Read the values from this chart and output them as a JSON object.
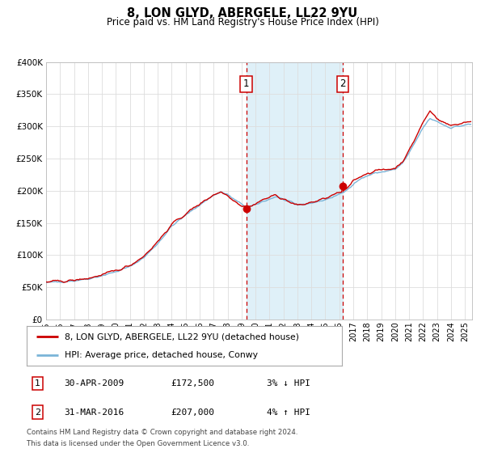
{
  "title": "8, LON GLYD, ABERGELE, LL22 9YU",
  "subtitle": "Price paid vs. HM Land Registry's House Price Index (HPI)",
  "ylim": [
    0,
    400000
  ],
  "yticks": [
    0,
    50000,
    100000,
    150000,
    200000,
    250000,
    300000,
    350000,
    400000
  ],
  "ytick_labels": [
    "£0",
    "£50K",
    "£100K",
    "£150K",
    "£200K",
    "£250K",
    "£300K",
    "£350K",
    "£400K"
  ],
  "xlim_start": 1995.0,
  "xlim_end": 2025.5,
  "hpi_color": "#7ab4d8",
  "price_color": "#cc0000",
  "sale1_date": 2009.33,
  "sale1_price": 172500,
  "sale2_date": 2016.25,
  "sale2_price": 207000,
  "shade_color": "#daeef7",
  "legend_entries": [
    "8, LON GLYD, ABERGELE, LL22 9YU (detached house)",
    "HPI: Average price, detached house, Conwy"
  ],
  "table_rows": [
    [
      "1",
      "30-APR-2009",
      "£172,500",
      "3% ↓ HPI"
    ],
    [
      "2",
      "31-MAR-2016",
      "£207,000",
      "4% ↑ HPI"
    ]
  ],
  "footer_line1": "Contains HM Land Registry data © Crown copyright and database right 2024.",
  "footer_line2": "This data is licensed under the Open Government Licence v3.0.",
  "grid_color": "#dddddd",
  "anchors_hpi": [
    [
      1995.0,
      57000
    ],
    [
      1996.0,
      58500
    ],
    [
      1997.0,
      60000
    ],
    [
      1998.0,
      63000
    ],
    [
      1999.0,
      68000
    ],
    [
      2000.0,
      74000
    ],
    [
      2001.0,
      82000
    ],
    [
      2002.0,
      96000
    ],
    [
      2003.0,
      118000
    ],
    [
      2004.0,
      145000
    ],
    [
      2005.0,
      162000
    ],
    [
      2006.0,
      178000
    ],
    [
      2007.0,
      193000
    ],
    [
      2007.5,
      198000
    ],
    [
      2008.0,
      194000
    ],
    [
      2008.5,
      186000
    ],
    [
      2009.0,
      179000
    ],
    [
      2009.5,
      174000
    ],
    [
      2010.0,
      178000
    ],
    [
      2010.5,
      183000
    ],
    [
      2011.0,
      187000
    ],
    [
      2011.5,
      191000
    ],
    [
      2012.0,
      186000
    ],
    [
      2012.5,
      182000
    ],
    [
      2013.0,
      178000
    ],
    [
      2013.5,
      179000
    ],
    [
      2014.0,
      181000
    ],
    [
      2014.5,
      183000
    ],
    [
      2015.0,
      186000
    ],
    [
      2015.5,
      190000
    ],
    [
      2016.0,
      194000
    ],
    [
      2016.5,
      200000
    ],
    [
      2017.0,
      211000
    ],
    [
      2017.5,
      218000
    ],
    [
      2018.0,
      223000
    ],
    [
      2018.5,
      227000
    ],
    [
      2019.0,
      229000
    ],
    [
      2019.5,
      231000
    ],
    [
      2020.0,
      233000
    ],
    [
      2020.5,
      242000
    ],
    [
      2021.0,
      258000
    ],
    [
      2021.5,
      278000
    ],
    [
      2022.0,
      298000
    ],
    [
      2022.5,
      312000
    ],
    [
      2023.0,
      308000
    ],
    [
      2023.5,
      302000
    ],
    [
      2024.0,
      298000
    ],
    [
      2024.5,
      300000
    ],
    [
      2025.3,
      303000
    ]
  ],
  "anchors_price_offset": [
    [
      1995.0,
      1000
    ],
    [
      1997.0,
      500
    ],
    [
      1999.0,
      1000
    ],
    [
      2001.0,
      2000
    ],
    [
      2003.0,
      3000
    ],
    [
      2005.0,
      2000
    ],
    [
      2007.0,
      1000
    ],
    [
      2008.0,
      -1000
    ],
    [
      2009.0,
      -2000
    ],
    [
      2009.33,
      0
    ],
    [
      2010.0,
      2000
    ],
    [
      2011.0,
      3000
    ],
    [
      2012.0,
      1000
    ],
    [
      2013.0,
      -1000
    ],
    [
      2014.0,
      1000
    ],
    [
      2015.0,
      2000
    ],
    [
      2016.0,
      3000
    ],
    [
      2016.25,
      0
    ],
    [
      2017.0,
      5000
    ],
    [
      2018.0,
      4000
    ],
    [
      2019.0,
      3000
    ],
    [
      2020.0,
      2000
    ],
    [
      2021.0,
      4000
    ],
    [
      2022.0,
      8000
    ],
    [
      2022.5,
      12000
    ],
    [
      2023.0,
      5000
    ],
    [
      2024.0,
      3000
    ],
    [
      2025.3,
      5000
    ]
  ]
}
